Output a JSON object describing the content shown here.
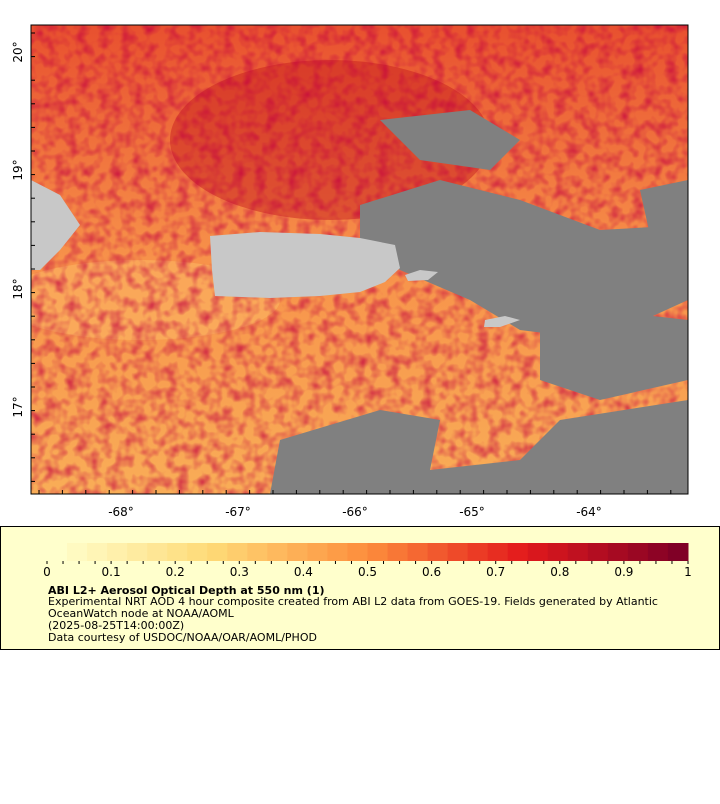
{
  "map": {
    "lat_labels": [
      "20°",
      "19°",
      "18°",
      "17°"
    ],
    "lon_labels": [
      "-68°",
      "-67°",
      "-66°",
      "-65°",
      "-64°"
    ]
  },
  "legend": {
    "ticks": [
      "0",
      "0.1",
      "0.2",
      "0.3",
      "0.4",
      "0.5",
      "0.6",
      "0.7",
      "0.8",
      "0.9",
      "1"
    ],
    "title": "ABI L2+ Aerosol Optical Depth at 550 nm (1)",
    "lines": [
      "Experimental NRT AOD 4 hour composite created from ABI L2 data from GOES-19. Fields generated by Atlantic",
      "OceanWatch node at NOAA/AOML",
      "(2025-08-25T14:00:00Z)",
      "Data courtesy of USDOC/NOAA/OAR/AOML/PHOD"
    ]
  }
}
